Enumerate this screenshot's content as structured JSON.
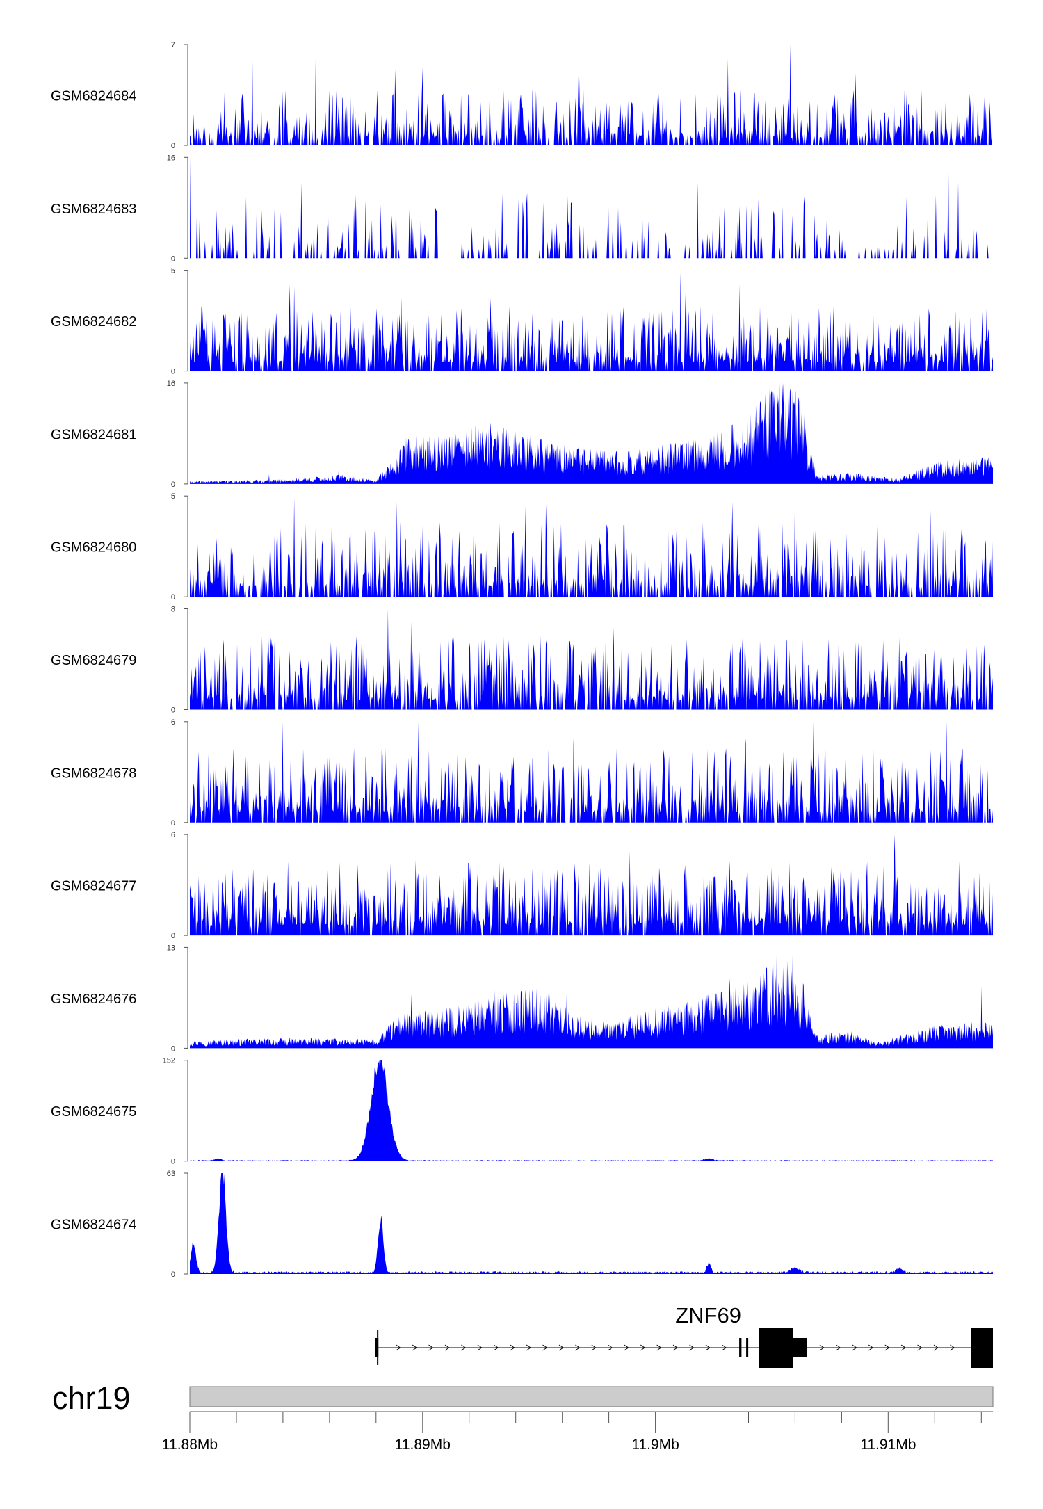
{
  "chart_data": {
    "type": "area",
    "genome_browser": true,
    "colors": {
      "track_fill": "#0000ff",
      "chromosome_fill": "#cccccc",
      "gene": "#000000"
    },
    "chromosome": "chr19",
    "xlim": [
      11880000,
      11914500
    ],
    "x_ticks": [
      11880000,
      11882000,
      11884000,
      11886000,
      11888000,
      11890000,
      11892000,
      11894000,
      11896000,
      11898000,
      11900000,
      11902000,
      11904000,
      11906000,
      11908000,
      11910000,
      11912000,
      11914000
    ],
    "x_tick_labels": [
      {
        "value": 11880000,
        "label": "11.88Mb"
      },
      {
        "value": 11890000,
        "label": "11.89Mb"
      },
      {
        "value": 11900000,
        "label": "11.9Mb"
      },
      {
        "value": 11910000,
        "label": "11.91Mb"
      }
    ],
    "tracks": [
      {
        "name": "GSM6824684",
        "ymax": 7,
        "ymax_label": "7",
        "ymin_label": "0",
        "style": "spiky",
        "seed": 11,
        "density": 0.62,
        "mean": 0.3,
        "peaks": [
          [
            11882700,
            7
          ],
          [
            11885400,
            6
          ],
          [
            11888800,
            5.3
          ],
          [
            11890000,
            5.4
          ],
          [
            11896700,
            6
          ],
          [
            11903100,
            6
          ],
          [
            11905800,
            7
          ],
          [
            11908600,
            5
          ]
        ]
      },
      {
        "name": "GSM6824683",
        "ymax": 16,
        "ymax_label": "16",
        "ymin_label": "0",
        "style": "spiky",
        "seed": 23,
        "density": 0.22,
        "mean": 0.35,
        "peaks": [
          [
            11880000,
            16
          ],
          [
            11884800,
            12
          ],
          [
            11888200,
            8.5
          ],
          [
            11894300,
            9
          ],
          [
            11898400,
            8
          ],
          [
            11901800,
            12
          ],
          [
            11904100,
            8
          ],
          [
            11912600,
            16
          ],
          [
            11913000,
            12
          ]
        ]
      },
      {
        "name": "GSM6824682",
        "ymax": 5,
        "ymax_label": "5",
        "ymin_label": "0",
        "style": "spiky",
        "seed": 37,
        "density": 0.78,
        "mean": 0.35,
        "peaks": [
          [
            11884300,
            4.3
          ],
          [
            11884500,
            4.2
          ],
          [
            11889100,
            3.6
          ],
          [
            11892900,
            3.6
          ],
          [
            11901100,
            4.9
          ],
          [
            11901300,
            4.5
          ],
          [
            11903600,
            4.3
          ],
          [
            11910600,
            2.4
          ]
        ]
      },
      {
        "name": "GSM6824681",
        "ymax": 16,
        "ymax_label": "16",
        "ymin_label": "0",
        "style": "broad",
        "seed": 41,
        "profile": [
          [
            11880000,
            0.3
          ],
          [
            11884000,
            0.5
          ],
          [
            11886500,
            1.0
          ],
          [
            11888000,
            0.4
          ],
          [
            11889300,
            5
          ],
          [
            11891000,
            5.5
          ],
          [
            11893000,
            6.5
          ],
          [
            11895500,
            4.5
          ],
          [
            11898000,
            3.5
          ],
          [
            11900000,
            4
          ],
          [
            11902000,
            5
          ],
          [
            11904000,
            7.5
          ],
          [
            11905500,
            12
          ],
          [
            11906300,
            9
          ],
          [
            11906900,
            1
          ],
          [
            11908500,
            1.2
          ],
          [
            11910500,
            0.6
          ],
          [
            11912000,
            2.5
          ],
          [
            11914500,
            3
          ]
        ],
        "peaks": [
          [
            11883400,
            1.5
          ],
          [
            11886400,
            3.2
          ],
          [
            11892300,
            9.5
          ],
          [
            11905600,
            15.5
          ],
          [
            11905100,
            13
          ]
        ]
      },
      {
        "name": "GSM6824680",
        "ymax": 5,
        "ymax_label": "5",
        "ymin_label": "0",
        "style": "spiky",
        "seed": 53,
        "density": 0.6,
        "mean": 0.4,
        "peaks": [
          [
            11884500,
            4.9
          ],
          [
            11888900,
            4.7
          ],
          [
            11894400,
            4.5
          ],
          [
            11895300,
            4.6
          ],
          [
            11903300,
            4.7
          ],
          [
            11906000,
            4.5
          ],
          [
            11911800,
            4.3
          ]
        ]
      },
      {
        "name": "GSM6824679",
        "ymax": 8,
        "ymax_label": "8",
        "ymin_label": "0",
        "style": "spiky",
        "seed": 67,
        "density": 0.7,
        "mean": 0.4,
        "peaks": [
          [
            11888500,
            8
          ],
          [
            11889500,
            7
          ],
          [
            11891300,
            6
          ],
          [
            11898200,
            6.5
          ],
          [
            11903300,
            5.3
          ]
        ]
      },
      {
        "name": "GSM6824678",
        "ymax": 6,
        "ymax_label": "6",
        "ymin_label": "0",
        "style": "spiky",
        "seed": 79,
        "density": 0.72,
        "mean": 0.4,
        "peaks": [
          [
            11882500,
            5
          ],
          [
            11884000,
            6
          ],
          [
            11889800,
            6
          ],
          [
            11896500,
            5
          ],
          [
            11903900,
            5
          ],
          [
            11906800,
            6
          ],
          [
            11907300,
            5.8
          ],
          [
            11912500,
            6
          ]
        ]
      },
      {
        "name": "GSM6824677",
        "ymax": 6,
        "ymax_label": "6",
        "ymin_label": "0",
        "style": "spiky",
        "seed": 83,
        "density": 0.82,
        "mean": 0.4,
        "peaks": [
          [
            11888500,
            3.9
          ],
          [
            11889700,
            4.5
          ],
          [
            11898900,
            5
          ],
          [
            11904900,
            3.5
          ],
          [
            11910300,
            6
          ],
          [
            11913700,
            3.5
          ]
        ]
      },
      {
        "name": "GSM6824676",
        "ymax": 13,
        "ymax_label": "13",
        "ymin_label": "0",
        "style": "broad",
        "seed": 97,
        "profile": [
          [
            11880000,
            0.7
          ],
          [
            11884000,
            0.9
          ],
          [
            11888000,
            0.8
          ],
          [
            11889000,
            3
          ],
          [
            11891000,
            3.5
          ],
          [
            11893000,
            4.5
          ],
          [
            11895000,
            5.5
          ],
          [
            11896500,
            3
          ],
          [
            11898000,
            2.2
          ],
          [
            11900000,
            3.5
          ],
          [
            11902000,
            4.5
          ],
          [
            11904000,
            6
          ],
          [
            11905500,
            8
          ],
          [
            11906300,
            6
          ],
          [
            11906900,
            1.2
          ],
          [
            11908500,
            1.5
          ],
          [
            11909500,
            0.5
          ],
          [
            11912000,
            2
          ],
          [
            11914500,
            2.5
          ]
        ],
        "peaks": [
          [
            11889500,
            7
          ],
          [
            11893100,
            7.5
          ],
          [
            11896200,
            7
          ],
          [
            11903200,
            9
          ],
          [
            11905200,
            12
          ],
          [
            11905900,
            12.8
          ],
          [
            11914000,
            8
          ]
        ]
      },
      {
        "name": "GSM6824675",
        "ymax": 152,
        "ymax_label": "152",
        "ymin_label": "0",
        "style": "smooth",
        "seed": 101,
        "baseline": 1.2,
        "peaks": [
          [
            11888150,
            150,
            520
          ],
          [
            11881200,
            3,
            200
          ],
          [
            11902300,
            3,
            250
          ]
        ]
      },
      {
        "name": "GSM6824674",
        "ymax": 63,
        "ymax_label": "63",
        "ymin_label": "0",
        "style": "smooth",
        "seed": 113,
        "baseline": 1.2,
        "peaks": [
          [
            11881400,
            62,
            210
          ],
          [
            11880150,
            18,
            160
          ],
          [
            11888200,
            33,
            160
          ],
          [
            11902300,
            6,
            120
          ],
          [
            11906000,
            3,
            250
          ],
          [
            11910500,
            2.5,
            200
          ]
        ]
      }
    ],
    "gene": {
      "name": "ZNF69",
      "strand": "+",
      "start": 11887950,
      "end": 11914500,
      "exons": [
        [
          11887950,
          11888100,
          "utr"
        ],
        [
          11903600,
          11903700,
          "utr"
        ],
        [
          11903900,
          11903990,
          "utr"
        ],
        [
          11904450,
          11905900,
          "cds"
        ],
        [
          11905900,
          11906500,
          "utr"
        ],
        [
          11913550,
          11914500,
          "cds"
        ]
      ]
    }
  }
}
